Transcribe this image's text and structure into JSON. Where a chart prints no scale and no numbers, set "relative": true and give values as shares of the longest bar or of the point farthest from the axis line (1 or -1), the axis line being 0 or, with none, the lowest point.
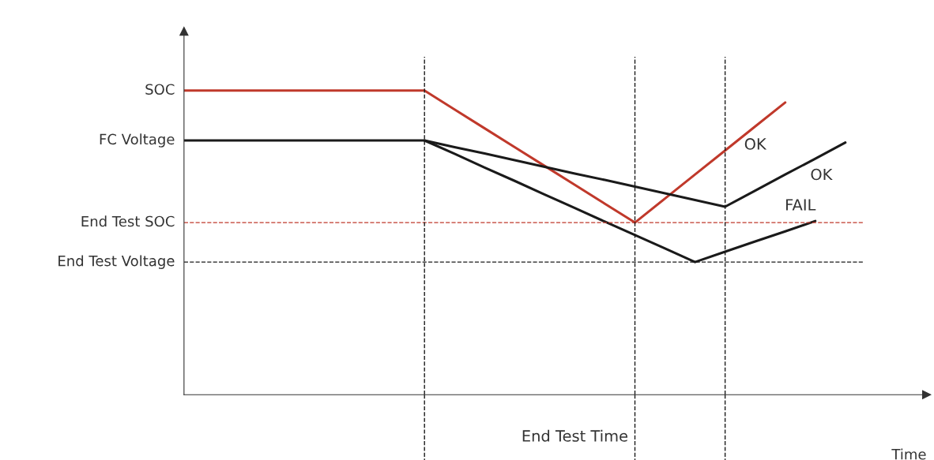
{
  "chart_data": {
    "type": "line",
    "relative": true,
    "xlabel": "Time",
    "categories": [
      null,
      null,
      null,
      null,
      null,
      null,
      null,
      null,
      null,
      null,
      null,
      null,
      null,
      null,
      null,
      null,
      null,
      null,
      null,
      null,
      null,
      null,
      null,
      null,
      null
    ],
    "series": [
      {
        "name": "SOC",
        "color": "#c0392b",
        "values": [
          1,
          1,
          1,
          1,
          1,
          1,
          1,
          1,
          1,
          0.938,
          0.876,
          0.814,
          0.752,
          0.69,
          0.628,
          0.566,
          0.645,
          0.724,
          0.803,
          0.882,
          0.961,
          null,
          null,
          null,
          null
        ]
      },
      {
        "name": "FC Voltage",
        "color": "#1a1a1a",
        "values": [
          0.836,
          0.836,
          0.836,
          0.836,
          0.836,
          0.836,
          0.836,
          0.836,
          0.836,
          0.814,
          0.793,
          0.771,
          0.749,
          0.727,
          0.706,
          0.684,
          0.662,
          0.64,
          0.618,
          0.671,
          0.724,
          0.776,
          0.829,
          null,
          null
        ]
      },
      {
        "color": "#1a1a1a",
        "values": [
          null,
          null,
          null,
          null,
          null,
          null,
          null,
          null,
          0.836,
          0.792,
          0.747,
          0.703,
          0.658,
          0.614,
          0.569,
          0.525,
          0.481,
          0.436,
          0.47,
          0.504,
          0.537,
          0.571,
          null,
          null,
          null
        ]
      }
    ],
    "ref_lines": [
      {
        "axis": "y",
        "value": 0.566,
        "label": "End Test SOC",
        "color": "#c0392b",
        "line_style": "dashed"
      },
      {
        "axis": "y",
        "value": 0.436,
        "label": "End Test Voltage",
        "color": "#1a1a1a",
        "line_style": "dashed"
      }
    ],
    "annotations": [
      "OK",
      "OK",
      "FAIL",
      "End Test Time"
    ],
    "legend": false,
    "grid": "x",
    "marker": "none",
    "line_style": "solid"
  }
}
